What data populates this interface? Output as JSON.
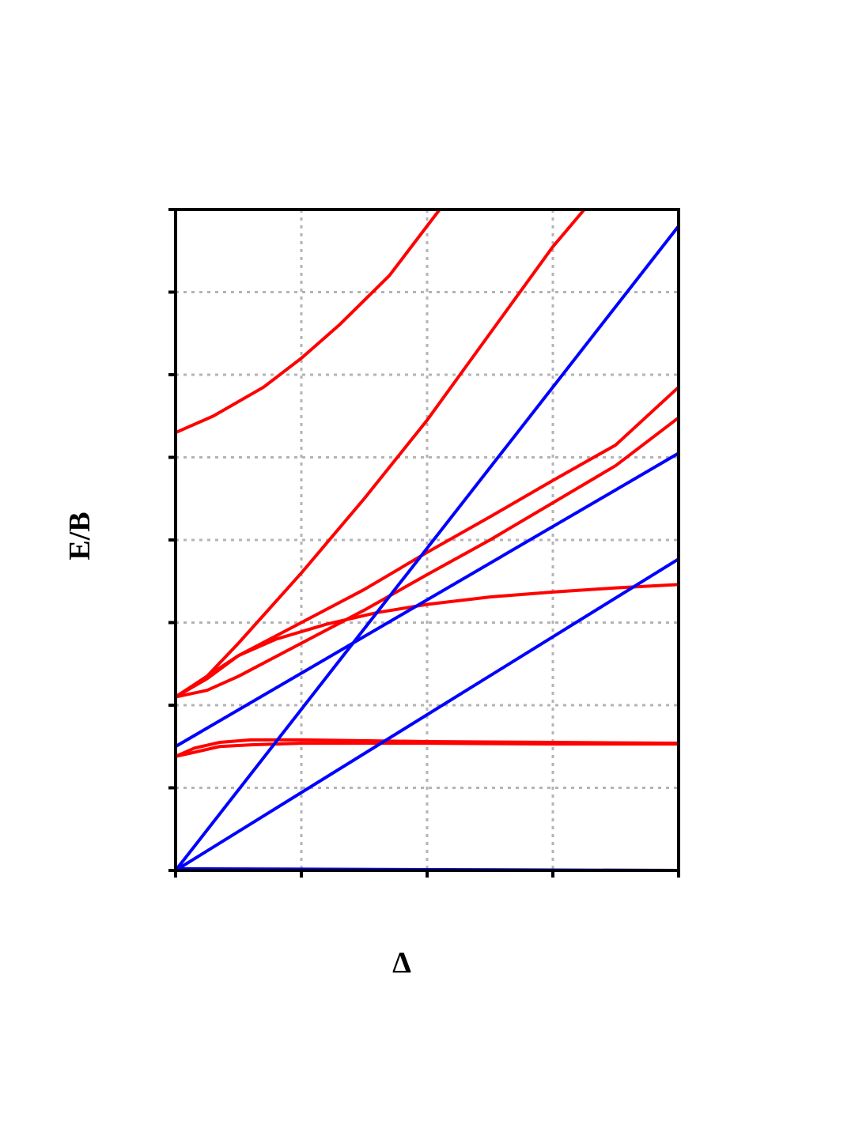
{
  "chart_data": {
    "type": "line",
    "title": "",
    "xlabel": "Δ",
    "ylabel": "E/B",
    "xlim": [
      0,
      4
    ],
    "ylim": [
      0,
      8
    ],
    "x_ticks": [
      0,
      1,
      2,
      3,
      4
    ],
    "y_ticks": [
      0,
      1,
      2,
      3,
      4,
      5,
      6,
      7,
      8
    ],
    "tick_labels_shown": false,
    "grid": true,
    "legend": "none",
    "colors": {
      "red": "#ff0000",
      "blue": "#0000ff",
      "axes": "#000000",
      "grid": "#b4b4b4"
    },
    "series": [
      {
        "color": "red",
        "points": [
          [
            0,
            5.3
          ],
          [
            0.3,
            5.5
          ],
          [
            0.7,
            5.85
          ],
          [
            1.0,
            6.2
          ],
          [
            1.3,
            6.6
          ],
          [
            1.7,
            7.2
          ],
          [
            2.1,
            8.0
          ]
        ]
      },
      {
        "color": "red",
        "points": [
          [
            0,
            2.1
          ],
          [
            0.25,
            2.35
          ],
          [
            0.5,
            2.75
          ],
          [
            1.0,
            3.6
          ],
          [
            1.5,
            4.5
          ],
          [
            2.0,
            5.45
          ],
          [
            2.5,
            6.5
          ],
          [
            3.0,
            7.55
          ],
          [
            3.25,
            8.0
          ]
        ]
      },
      {
        "color": "red",
        "points": [
          [
            0,
            2.1
          ],
          [
            0.25,
            2.32
          ],
          [
            0.5,
            2.6
          ],
          [
            1.0,
            3.0
          ],
          [
            1.5,
            3.4
          ],
          [
            2.0,
            3.85
          ],
          [
            2.5,
            4.28
          ],
          [
            3.0,
            4.72
          ],
          [
            3.5,
            5.15
          ],
          [
            4.0,
            5.85
          ]
        ]
      },
      {
        "color": "red",
        "points": [
          [
            0,
            2.1
          ],
          [
            0.25,
            2.18
          ],
          [
            0.5,
            2.35
          ],
          [
            1.0,
            2.75
          ],
          [
            1.5,
            3.15
          ],
          [
            2.0,
            3.58
          ],
          [
            2.5,
            4.0
          ],
          [
            3.0,
            4.45
          ],
          [
            3.5,
            4.9
          ],
          [
            4.0,
            5.48
          ]
        ]
      },
      {
        "color": "red",
        "points": [
          [
            0,
            2.1
          ],
          [
            0.25,
            2.35
          ],
          [
            0.5,
            2.6
          ],
          [
            0.8,
            2.8
          ],
          [
            1.2,
            2.98
          ],
          [
            1.6,
            3.12
          ],
          [
            2.0,
            3.22
          ],
          [
            2.5,
            3.31
          ],
          [
            3.0,
            3.37
          ],
          [
            3.5,
            3.42
          ],
          [
            4.0,
            3.46
          ]
        ]
      },
      {
        "color": "red",
        "points": [
          [
            0,
            1.38
          ],
          [
            0.15,
            1.48
          ],
          [
            0.35,
            1.55
          ],
          [
            0.6,
            1.58
          ],
          [
            1.0,
            1.58
          ],
          [
            2.0,
            1.56
          ],
          [
            3.0,
            1.55
          ],
          [
            4.0,
            1.54
          ]
        ]
      },
      {
        "color": "red",
        "points": [
          [
            0,
            1.38
          ],
          [
            0.15,
            1.43
          ],
          [
            0.35,
            1.5
          ],
          [
            0.6,
            1.52
          ],
          [
            1.0,
            1.54
          ],
          [
            2.0,
            1.54
          ],
          [
            3.0,
            1.53
          ],
          [
            4.0,
            1.53
          ]
        ]
      },
      {
        "color": "blue",
        "points": [
          [
            0,
            0
          ],
          [
            4,
            7.8
          ]
        ]
      },
      {
        "color": "blue",
        "points": [
          [
            0,
            1.5
          ],
          [
            4,
            5.05
          ]
        ]
      },
      {
        "color": "blue",
        "points": [
          [
            0,
            0
          ],
          [
            4,
            3.77
          ]
        ]
      },
      {
        "color": "blue",
        "points": [
          [
            0,
            0.02
          ],
          [
            4,
            0.0
          ]
        ]
      }
    ]
  }
}
